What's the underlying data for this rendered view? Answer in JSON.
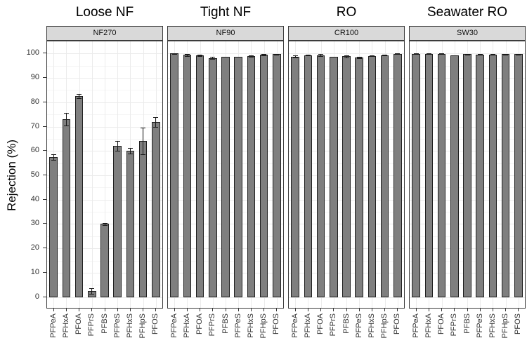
{
  "figure": {
    "ylabel": "Rejection (%)",
    "yticks": [
      0,
      10,
      20,
      30,
      40,
      50,
      60,
      70,
      80,
      90,
      100
    ],
    "colors": {
      "bar_fill": "#7f7f7f",
      "bar_border": "#1f1f1f",
      "strip_bg": "#d9d9d9",
      "panel_border": "#3c3c3c",
      "grid_major": "#ebebeb",
      "grid_minor": "#f5f5f5",
      "tick_text": "#333333",
      "error_bar": "#1a1a1a"
    }
  },
  "chart_data": [
    {
      "type": "bar",
      "title": "Loose NF",
      "subtitle": "NF270",
      "categories": [
        "PFPeA",
        "PFHxA",
        "PFOA",
        "PFPrS",
        "PFBS",
        "PFPeS",
        "PFHxS",
        "PFHpS",
        "PFOS"
      ],
      "values": [
        57.5,
        73,
        82.5,
        2.5,
        30,
        62,
        60,
        64,
        72
      ],
      "errors": [
        1.2,
        2.5,
        0.8,
        1.2,
        0.5,
        2,
        1.2,
        5.5,
        2
      ],
      "ylabel": "Rejection (%)",
      "ylim": [
        0,
        100
      ],
      "grid": true,
      "legend": "none"
    },
    {
      "type": "bar",
      "title": "Tight NF",
      "subtitle": "NF90",
      "categories": [
        "PFPeA",
        "PFHxA",
        "PFOA",
        "PFPrS",
        "PFBS",
        "PFPeS",
        "PFHxS",
        "PFHpS",
        "PFOS"
      ],
      "values": [
        100,
        99.4,
        99.2,
        98.2,
        98.7,
        98.7,
        99,
        99.5,
        99.7
      ],
      "errors": [
        0.1,
        0.4,
        0.3,
        0.4,
        0.1,
        0.1,
        0.2,
        0.4,
        0.2
      ],
      "ylabel": "Rejection (%)",
      "ylim": [
        0,
        100
      ],
      "grid": true,
      "legend": "none"
    },
    {
      "type": "bar",
      "title": "RO",
      "subtitle": "CR100",
      "categories": [
        "PFPeA",
        "PFHxA",
        "PFOA",
        "PFPrS",
        "PFBS",
        "PFPeS",
        "PFHxS",
        "PFHpS",
        "PFOS"
      ],
      "values": [
        98.8,
        99.3,
        99.3,
        98.7,
        98.9,
        98.4,
        99,
        99.3,
        99.9
      ],
      "errors": [
        0.3,
        0.1,
        0.4,
        0.1,
        0.4,
        0.4,
        0.1,
        0.1,
        0.1
      ],
      "ylabel": "Rejection (%)",
      "ylim": [
        0,
        100
      ],
      "grid": true,
      "legend": "none"
    },
    {
      "type": "bar",
      "title": "Seawater RO",
      "subtitle": "SW30",
      "categories": [
        "PFPeA",
        "PFHxA",
        "PFOA",
        "PFPrS",
        "PFBS",
        "PFPeS",
        "PFHxS",
        "PFHpS",
        "PFOS"
      ],
      "values": [
        99.9,
        99.9,
        99.9,
        99.2,
        99.7,
        99.6,
        99.6,
        99.7,
        99.7
      ],
      "errors": [
        0.1,
        0.1,
        0.1,
        0.1,
        0.1,
        0.1,
        0.1,
        0.1,
        0.1
      ],
      "ylabel": "Rejection (%)",
      "ylim": [
        0,
        100
      ],
      "grid": true,
      "legend": "none"
    }
  ]
}
